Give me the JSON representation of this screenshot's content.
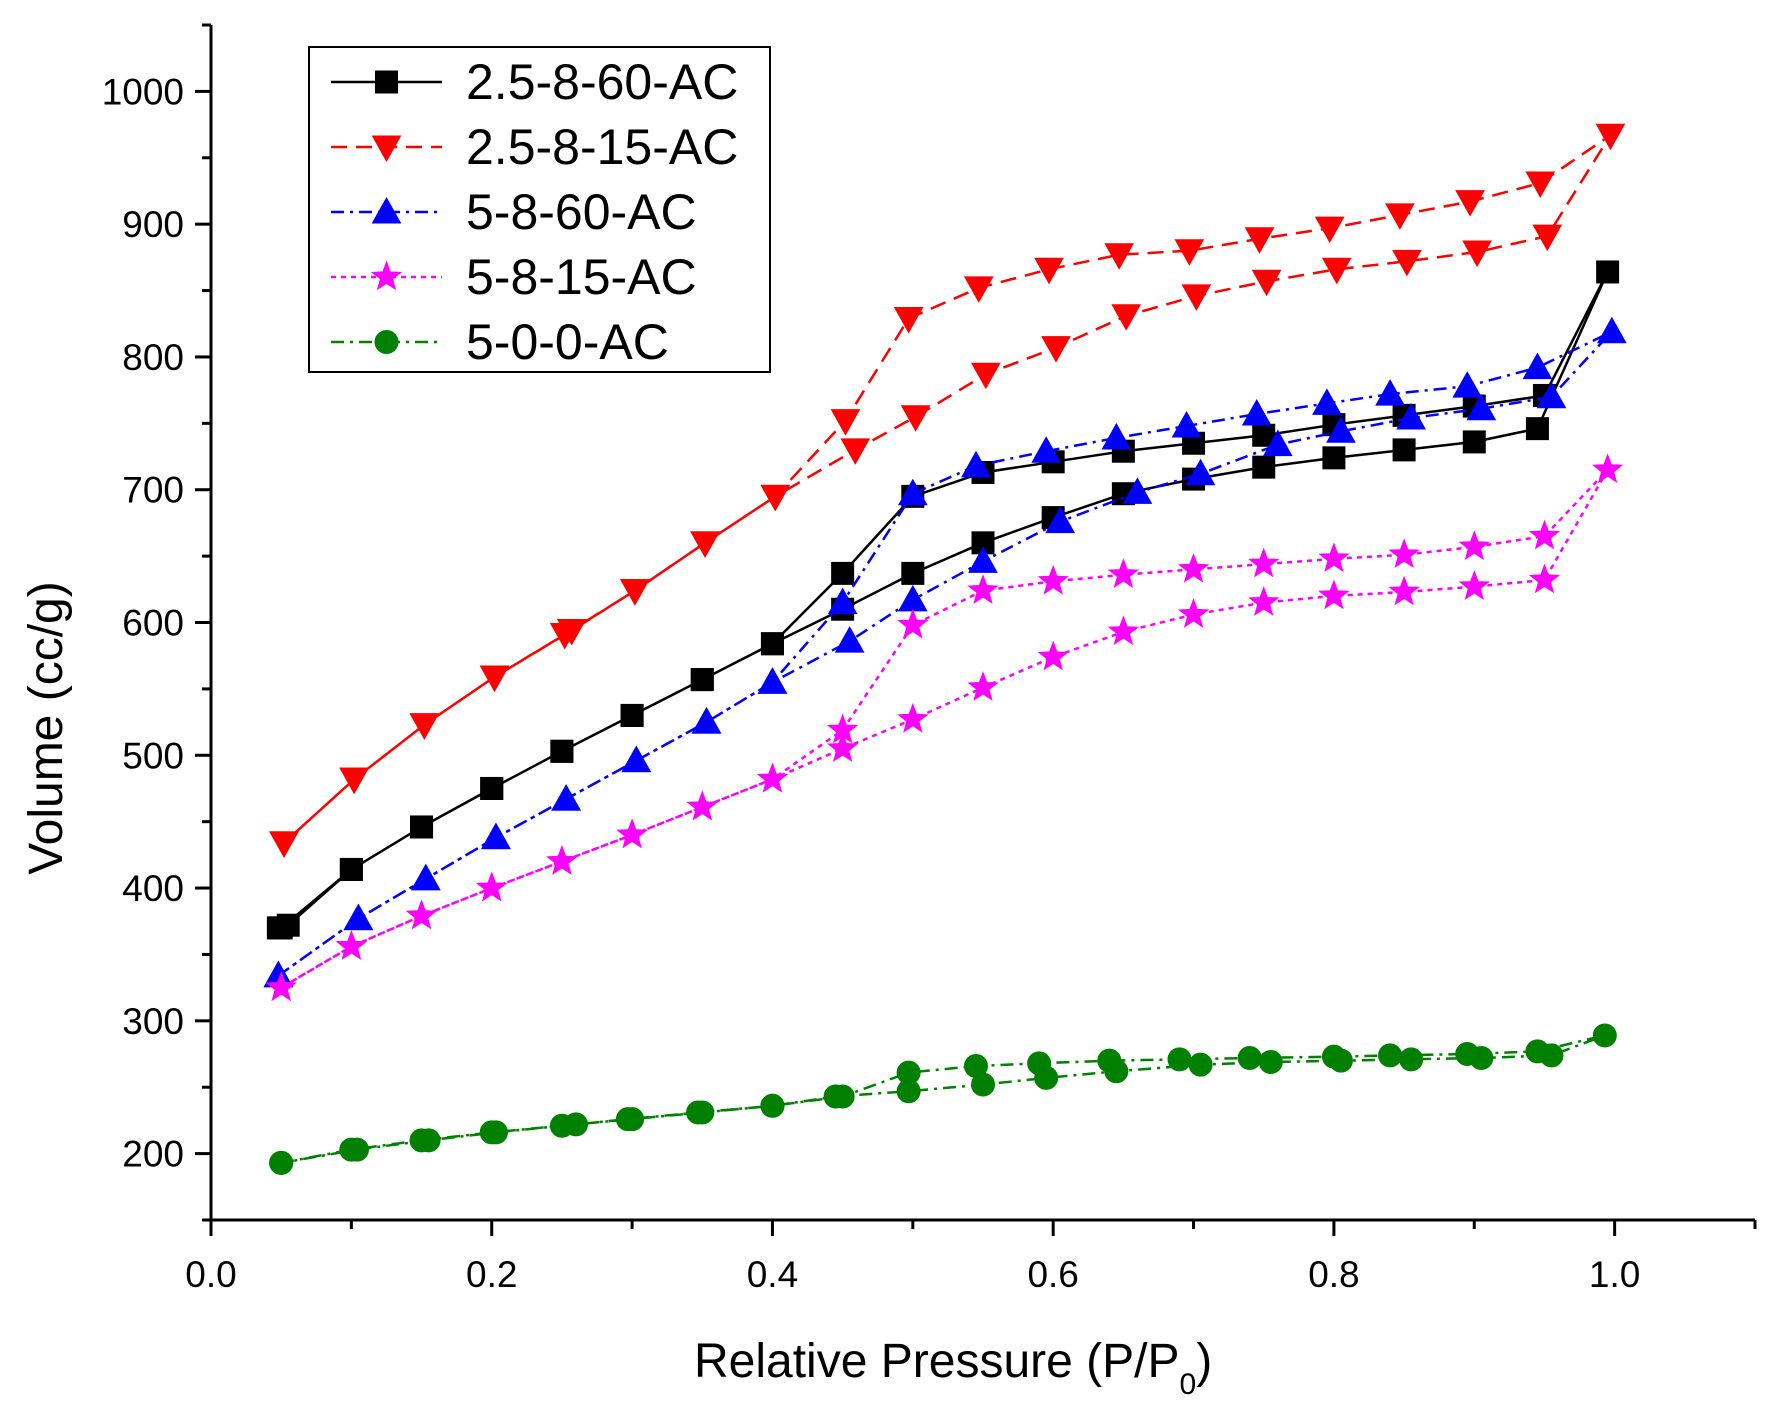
{
  "chart_data": {
    "type": "line",
    "title": "",
    "xlabel": "Relative Pressure (P/P",
    "xlabel_sub": "0",
    "xlabel_end": ")",
    "ylabel": "Volume (cc/g)",
    "xlim": [
      0.0,
      1.1
    ],
    "ylim": [
      150,
      1050
    ],
    "xticks": [
      0.0,
      0.2,
      0.4,
      0.6,
      0.8,
      1.0
    ],
    "xtick_labels": [
      "0.0",
      "0.2",
      "0.4",
      "0.6",
      "0.8",
      "1.0"
    ],
    "yticks": [
      200,
      300,
      400,
      500,
      600,
      700,
      800,
      900,
      1000
    ],
    "ytick_labels": [
      "200",
      "300",
      "400",
      "500",
      "600",
      "700",
      "800",
      "900",
      "1000"
    ],
    "grid": false,
    "legend_position": "top-left",
    "series": [
      {
        "name": "2.5-8-60-AC",
        "color": "#000000",
        "dash": "solid",
        "marker": "square",
        "x": [
          0.05,
          0.1,
          0.15,
          0.2,
          0.25,
          0.3,
          0.35,
          0.4,
          0.45,
          0.5,
          0.55,
          0.6,
          0.65,
          0.7,
          0.75,
          0.8,
          0.85,
          0.9,
          0.95,
          0.995,
          0.945,
          0.9,
          0.85,
          0.8,
          0.75,
          0.7,
          0.65,
          0.6,
          0.55,
          0.5,
          0.45,
          0.4,
          0.35,
          0.3,
          0.25,
          0.2,
          0.15,
          0.1,
          0.055,
          0.048
        ],
        "y": [
          370,
          414,
          446,
          475,
          503,
          530,
          557,
          584,
          637,
          695,
          713,
          721,
          729,
          735,
          741,
          749,
          756,
          763,
          771,
          864,
          746,
          736,
          730,
          724,
          717,
          708,
          697,
          679,
          660,
          637,
          610,
          584,
          557,
          530,
          503,
          475,
          446,
          414,
          372,
          370
        ]
      },
      {
        "name": "2.5-8-15-AC",
        "color": "#ff0000",
        "dash": "dashed",
        "marker": "triangle-down",
        "x": [
          0.052,
          0.102,
          0.152,
          0.202,
          0.252,
          0.302,
          0.352,
          0.402,
          0.452,
          0.497,
          0.547,
          0.597,
          0.647,
          0.697,
          0.747,
          0.797,
          0.847,
          0.897,
          0.947,
          0.997,
          0.952,
          0.902,
          0.852,
          0.802,
          0.752,
          0.702,
          0.652,
          0.602,
          0.552,
          0.502,
          0.459,
          0.402,
          0.352,
          0.302,
          0.257,
          0.202,
          0.152,
          0.102,
          0.052
        ],
        "y": [
          434,
          482,
          523,
          559,
          591,
          624,
          660,
          695,
          752,
          829,
          852,
          866,
          877,
          880,
          889,
          897,
          907,
          917,
          931,
          967,
          891,
          879,
          872,
          866,
          857,
          846,
          831,
          807,
          787,
          755,
          730,
          695,
          660,
          624,
          594,
          559,
          523,
          482,
          434
        ]
      },
      {
        "name": "5-8-60-AC",
        "color": "#0000ff",
        "dash": "dashdot",
        "marker": "triangle-up",
        "x": [
          0.048,
          0.105,
          0.153,
          0.203,
          0.253,
          0.303,
          0.353,
          0.4,
          0.45,
          0.5,
          0.545,
          0.595,
          0.645,
          0.695,
          0.745,
          0.795,
          0.84,
          0.895,
          0.945,
          0.998,
          0.955,
          0.905,
          0.855,
          0.805,
          0.76,
          0.705,
          0.66,
          0.605,
          0.55,
          0.5,
          0.455,
          0.4,
          0.353,
          0.303,
          0.253,
          0.203,
          0.153,
          0.105,
          0.048
        ],
        "y": [
          334,
          377,
          407,
          438,
          467,
          496,
          525,
          555,
          615,
          697,
          718,
          729,
          739,
          748,
          757,
          765,
          772,
          778,
          792,
          819,
          770,
          761,
          754,
          744,
          734,
          712,
          698,
          676,
          646,
          617,
          586,
          555,
          525,
          496,
          467,
          438,
          407,
          377,
          334
        ]
      },
      {
        "name": "5-8-15-AC",
        "color": "#ff00ff",
        "dash": "dotted",
        "marker": "star",
        "x": [
          0.05,
          0.1,
          0.15,
          0.2,
          0.25,
          0.3,
          0.35,
          0.4,
          0.45,
          0.5,
          0.55,
          0.6,
          0.65,
          0.7,
          0.75,
          0.8,
          0.85,
          0.9,
          0.95,
          0.995,
          0.95,
          0.9,
          0.85,
          0.8,
          0.75,
          0.7,
          0.65,
          0.6,
          0.55,
          0.5,
          0.45,
          0.4,
          0.35,
          0.3,
          0.25,
          0.2,
          0.15,
          0.1,
          0.05
        ],
        "y": [
          325,
          356,
          379,
          400,
          420,
          440,
          461,
          482,
          519,
          598,
          624,
          631,
          636,
          640,
          644,
          648,
          651,
          657,
          665,
          715,
          632,
          627,
          623,
          620,
          615,
          606,
          593,
          574,
          551,
          527,
          505,
          482,
          461,
          440,
          420,
          400,
          379,
          356,
          325
        ]
      },
      {
        "name": "5-0-0-AC",
        "color": "#008000",
        "dash": "dashdot",
        "marker": "circle",
        "x": [
          0.05,
          0.1,
          0.15,
          0.2,
          0.25,
          0.3,
          0.35,
          0.4,
          0.45,
          0.497,
          0.545,
          0.59,
          0.64,
          0.69,
          0.74,
          0.8,
          0.84,
          0.895,
          0.945,
          0.993,
          0.955,
          0.905,
          0.855,
          0.805,
          0.755,
          0.705,
          0.645,
          0.595,
          0.55,
          0.497,
          0.445,
          0.4,
          0.347,
          0.297,
          0.26,
          0.203,
          0.155,
          0.104,
          0.05
        ],
        "y": [
          193,
          203,
          210,
          216,
          221,
          226,
          231,
          236,
          243,
          261,
          266,
          268,
          270,
          271,
          272,
          273,
          274,
          275,
          277,
          289,
          274,
          272,
          271,
          270,
          269,
          267,
          262,
          257,
          252,
          247,
          243,
          236,
          231,
          226,
          222,
          216,
          210,
          203,
          193
        ]
      }
    ]
  }
}
